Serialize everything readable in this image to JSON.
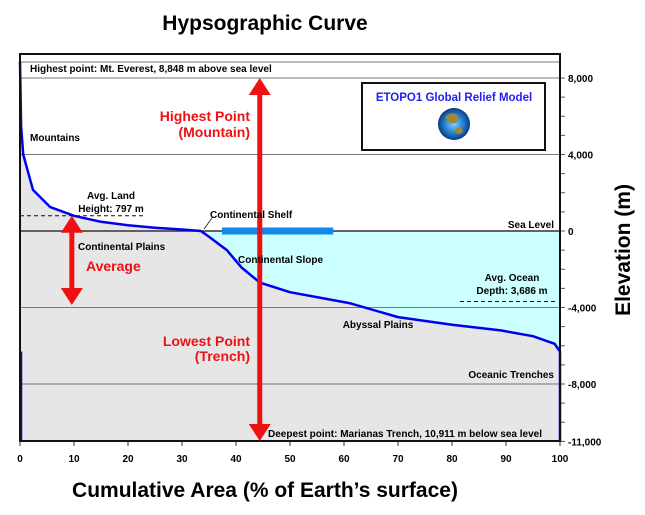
{
  "chart_data": {
    "type": "area",
    "title": "Hypsographic Curve",
    "xlabel": "Cumulative Area (% of Earth’s surface)",
    "ylabel": "Elevation (m)",
    "xlim": [
      0,
      100
    ],
    "ylim": [
      -11000,
      8848
    ],
    "x_ticks": [
      0,
      10,
      20,
      30,
      40,
      50,
      60,
      70,
      80,
      90,
      100
    ],
    "y_ticks": [
      {
        "v": 8000,
        "label": "8,000"
      },
      {
        "v": 4000,
        "label": "4,000"
      },
      {
        "v": 0,
        "label": "0"
      },
      {
        "v": -4000,
        "label": "-4,000"
      },
      {
        "v": -8000,
        "label": "-8,000"
      },
      {
        "v": -11000,
        "label": "-11,000"
      }
    ],
    "y_minor_step": 1000,
    "grid": true,
    "series": [
      {
        "x": [
          0,
          0.2,
          0.6,
          2.4,
          5.6,
          10,
          15,
          20,
          25,
          30,
          33.5,
          35,
          38.3,
          41,
          44.4,
          50,
          61,
          70,
          80,
          89,
          95,
          99,
          100,
          100
        ],
        "y": [
          8848,
          5500,
          4000,
          2150,
          1250,
          797,
          480,
          300,
          170,
          80,
          0,
          -300,
          -1000,
          -1900,
          -2700,
          -3200,
          -3770,
          -4500,
          -4900,
          -5200,
          -5500,
          -5900,
          -6300,
          -11000
        ]
      }
    ],
    "colors": {
      "curve": "#0000ee",
      "land_fill": "#e6e6e6",
      "ocean_fill": "#ccffff",
      "arrow": "#ee1111",
      "shelf": "#1188ee",
      "label_red": "#ee1111",
      "box_text": "#2222ee"
    },
    "avg_land": {
      "value": 797,
      "label": [
        "Avg. Land",
        "Height: 797 m"
      ]
    },
    "avg_ocean": {
      "value": -3686,
      "label": [
        "Avg. Ocean",
        "Depth: 3,686 m"
      ]
    },
    "continental_shelf": {
      "x": [
        37.4,
        58
      ],
      "label": "Continental Shelf"
    },
    "arrows": {
      "average_x": 9.6,
      "extreme_x": 44.4
    },
    "annotations": {
      "highest": "Highest point: Mt. Everest, 8,848 m above sea level",
      "deepest": "Deepest point: Marianas Trench, 10,911 m below sea level",
      "mountains": "Mountains",
      "plains": "Continental Plains",
      "slope": "Continental Slope",
      "abyssal": "Abyssal Plains",
      "trenches": "Oceanic Trenches",
      "sea_level": "Sea Level",
      "average": "Average",
      "highest_point": [
        "Highest Point",
        "(Mountain)"
      ],
      "lowest_point": [
        "Lowest Point",
        "(Trench)"
      ]
    },
    "legend_box": {
      "title": "ETOPO1 Global Relief Model",
      "icon": "globe-icon"
    }
  }
}
